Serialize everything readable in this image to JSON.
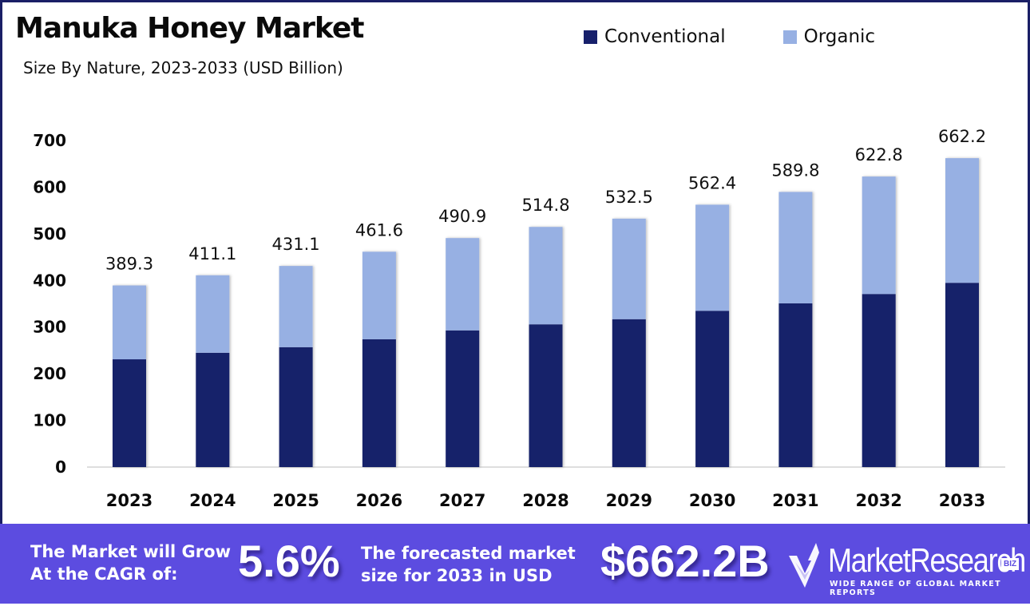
{
  "header": {
    "title": "Manuka Honey Market",
    "subtitle": "Size By Nature, 2023-2033 (USD Billion)"
  },
  "legend": [
    {
      "label": "Conventional",
      "color": "#17206b"
    },
    {
      "label": "Organic",
      "color": "#97b0e3"
    }
  ],
  "chart_data": {
    "type": "bar",
    "stacked": true,
    "title": "Manuka Honey Market",
    "subtitle": "Size By Nature, 2023-2033 (USD Billion)",
    "xlabel": "",
    "ylabel": "",
    "categories": [
      "2023",
      "2024",
      "2025",
      "2026",
      "2027",
      "2028",
      "2029",
      "2030",
      "2031",
      "2032",
      "2033"
    ],
    "series": [
      {
        "name": "Conventional",
        "color": "#17206b",
        "values": [
          231,
          245,
          257,
          274,
          293,
          306,
          317,
          335,
          351,
          371,
          395
        ]
      },
      {
        "name": "Organic",
        "color": "#97b0e3",
        "values": [
          158.3,
          166.1,
          174.1,
          187.6,
          197.9,
          208.8,
          215.5,
          227.4,
          238.8,
          251.8,
          267.2
        ]
      }
    ],
    "totals": [
      389.3,
      411.1,
      431.1,
      461.6,
      490.9,
      514.8,
      532.5,
      562.4,
      589.8,
      622.8,
      662.2
    ],
    "total_labels": [
      "389.3",
      "411.1",
      "431.1",
      "461.6",
      "490.9",
      "514.8",
      "532.5",
      "562.4",
      "589.8",
      "622.8",
      "662.2"
    ],
    "yticks": [
      0,
      100,
      200,
      300,
      400,
      500,
      600,
      700
    ],
    "ylim": [
      0,
      700
    ],
    "grid": false,
    "legend_position": "top-right"
  },
  "banner": {
    "cagr_label_line1": "The Market will Grow",
    "cagr_label_line2": "At the CAGR of:",
    "cagr_value": "5.6%",
    "forecast_label_line1": "The forecasted market",
    "forecast_label_line2": "size for 2033 in USD",
    "forecast_value": "$662.2B",
    "logo_name": "MarketResearch",
    "logo_badge": "BIZ",
    "logo_tagline": "WIDE RANGE OF GLOBAL MARKET REPORTS",
    "background_color": "#5c4ce0"
  }
}
